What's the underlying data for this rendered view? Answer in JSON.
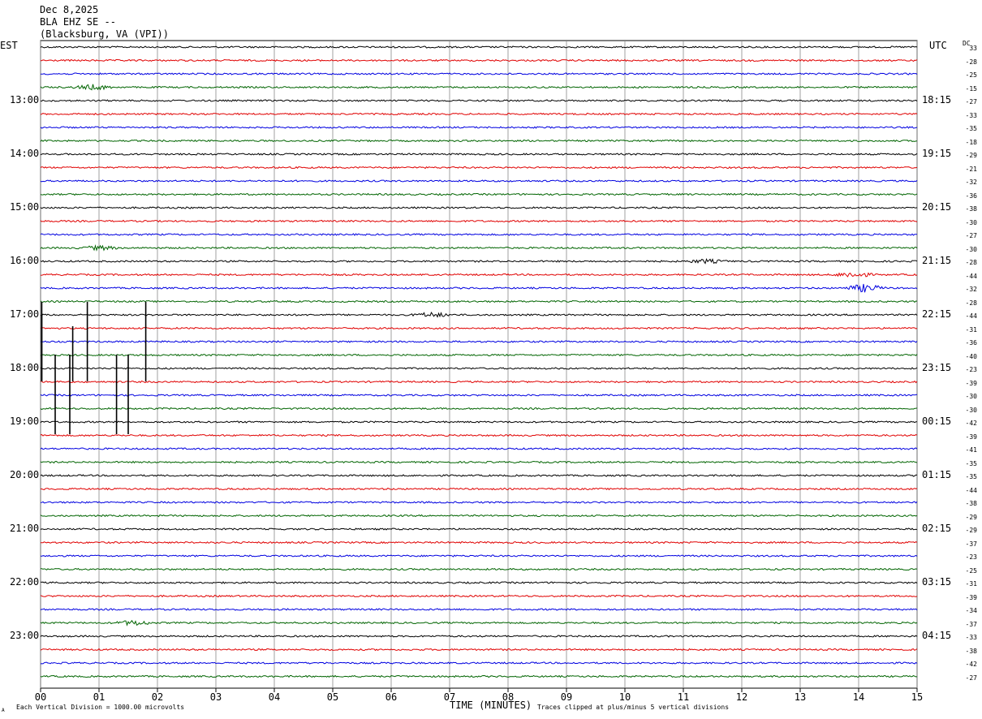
{
  "header": {
    "date": "Dec 8,2025",
    "station": "BLA EHZ SE --",
    "location": "(Blacksburg, VA (VPI))"
  },
  "left_axis_title": "EST",
  "right_axis_title": "UTC",
  "dc_title": "DC",
  "footer": {
    "scale_note": "Each Vertical Division = 1000.00 microvolts",
    "clip_note": "Traces clipped at plus/minus 5 vertical divisions",
    "xlabel": "TIME (MINUTES)",
    "corner_mark": "A"
  },
  "chart_data": {
    "type": "line",
    "title": "",
    "xlabel": "TIME (MINUTES)",
    "xlim": [
      0,
      15
    ],
    "x_ticks": [
      "00",
      "01",
      "02",
      "03",
      "04",
      "05",
      "06",
      "07",
      "08",
      "09",
      "10",
      "11",
      "12",
      "13",
      "14",
      "15"
    ],
    "trace_colors": [
      "#000000",
      "#e00000",
      "#0000e0",
      "#006400"
    ],
    "est_labels": [
      "13:00",
      "14:00",
      "15:00",
      "16:00",
      "17:00",
      "18:00",
      "19:00",
      "20:00",
      "21:00",
      "22:00",
      "23:00"
    ],
    "utc_labels": [
      "18:15",
      "19:15",
      "20:15",
      "21:15",
      "22:15",
      "23:15",
      "00:15",
      "01:15",
      "02:15",
      "03:15",
      "04:15"
    ],
    "dc_offsets": [
      33,
      -28,
      -25,
      -15,
      -27,
      -33,
      -35,
      -18,
      -29,
      -21,
      -32,
      -36,
      -38,
      -30,
      -27,
      -30,
      -28,
      -44,
      -32,
      -28,
      -44,
      -31,
      -36,
      -40,
      -23,
      -39,
      -30,
      -30,
      -42,
      -39,
      -41,
      -35,
      -35,
      -44,
      -38,
      -29,
      -29,
      -37,
      -23,
      -25,
      -31,
      -39,
      -34,
      -37,
      -33,
      -38,
      -42,
      -27
    ],
    "events": [
      {
        "trace": 3,
        "minute": 0.9,
        "amp": 2.2
      },
      {
        "trace": 17,
        "minute": 13.9,
        "amp": 2.5
      },
      {
        "trace": 18,
        "minute": 14.1,
        "amp": 3.5
      },
      {
        "trace": 20,
        "minute": 6.7,
        "amp": 2.0
      },
      {
        "trace": 43,
        "minute": 1.6,
        "amp": 2.2
      },
      {
        "trace": 15,
        "minute": 1.0,
        "amp": 1.8
      },
      {
        "trace": 16,
        "minute": 11.4,
        "amp": 1.6
      }
    ]
  }
}
